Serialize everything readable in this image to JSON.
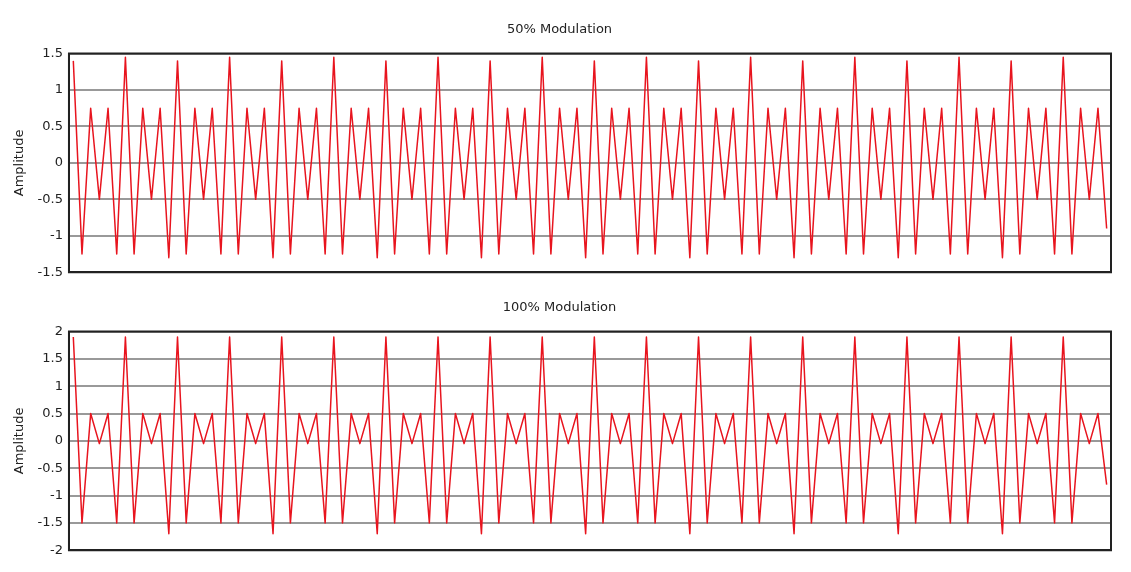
{
  "chart_data": [
    {
      "type": "line",
      "title": "50% Modulation",
      "ylabel": "Amplitude",
      "color": "#e8141e",
      "marker": "none",
      "grid": "y",
      "tick_labels": "y",
      "ylim": [
        -1.5,
        1.5
      ],
      "yticks": [
        -1.5,
        -1,
        -0.5,
        0,
        0.5,
        1,
        1.5
      ],
      "categories": [
        null,
        null,
        null,
        null,
        null,
        null,
        null,
        null,
        null,
        null,
        null,
        null,
        null,
        null,
        null,
        null,
        null,
        null,
        null,
        null,
        null,
        null,
        null,
        null,
        null,
        null,
        null,
        null,
        null,
        null,
        null,
        null,
        null,
        null,
        null,
        null,
        null,
        null,
        null,
        null,
        null,
        null,
        null,
        null,
        null,
        null,
        null,
        null,
        null,
        null,
        null,
        null,
        null,
        null,
        null,
        null,
        null,
        null,
        null,
        null,
        null,
        null,
        null,
        null,
        null,
        null,
        null,
        null,
        null,
        null,
        null,
        null,
        null,
        null,
        null,
        null,
        null,
        null,
        null,
        null,
        null,
        null,
        null,
        null,
        null,
        null,
        null,
        null,
        null,
        null,
        null,
        null,
        null,
        null,
        null,
        null,
        null,
        null,
        null,
        null,
        null,
        null,
        null,
        null,
        null,
        null,
        null,
        null,
        null,
        null,
        null,
        null,
        null,
        null,
        null,
        null,
        null,
        null,
        null,
        null
      ],
      "values": [
        1.4,
        -1.25,
        0.75,
        -0.5,
        0.75,
        -1.25,
        1.45,
        -1.25,
        0.75,
        -0.5,
        0.75,
        -1.3,
        1.4,
        -1.25,
        0.75,
        -0.5,
        0.75,
        -1.25,
        1.45,
        -1.25,
        0.75,
        -0.5,
        0.75,
        -1.3,
        1.4,
        -1.25,
        0.75,
        -0.5,
        0.75,
        -1.25,
        1.45,
        -1.25,
        0.75,
        -0.5,
        0.75,
        -1.3,
        1.4,
        -1.25,
        0.75,
        -0.5,
        0.75,
        -1.25,
        1.45,
        -1.25,
        0.75,
        -0.5,
        0.75,
        -1.3,
        1.4,
        -1.25,
        0.75,
        -0.5,
        0.75,
        -1.25,
        1.45,
        -1.25,
        0.75,
        -0.5,
        0.75,
        -1.3,
        1.4,
        -1.25,
        0.75,
        -0.5,
        0.75,
        -1.25,
        1.45,
        -1.25,
        0.75,
        -0.5,
        0.75,
        -1.3,
        1.4,
        -1.25,
        0.75,
        -0.5,
        0.75,
        -1.25,
        1.45,
        -1.25,
        0.75,
        -0.5,
        0.75,
        -1.3,
        1.4,
        -1.25,
        0.75,
        -0.5,
        0.75,
        -1.25,
        1.45,
        -1.25,
        0.75,
        -0.5,
        0.75,
        -1.3,
        1.4,
        -1.25,
        0.75,
        -0.5,
        0.75,
        -1.25,
        1.45,
        -1.25,
        0.75,
        -0.5,
        0.75,
        -1.3,
        1.4,
        -1.25,
        0.75,
        -0.5,
        0.75,
        -1.25,
        1.45,
        -1.25,
        0.75,
        -0.5,
        0.75,
        -0.9
      ]
    },
    {
      "type": "line",
      "title": "100% Modulation",
      "ylabel": "Amplitude",
      "color": "#e8141e",
      "marker": "none",
      "grid": "y",
      "tick_labels": "y",
      "ylim": [
        -2,
        2
      ],
      "yticks": [
        -2,
        -1.5,
        -1,
        -0.5,
        0,
        0.5,
        1,
        1.5,
        2
      ],
      "categories": [
        null,
        null,
        null,
        null,
        null,
        null,
        null,
        null,
        null,
        null,
        null,
        null,
        null,
        null,
        null,
        null,
        null,
        null,
        null,
        null,
        null,
        null,
        null,
        null,
        null,
        null,
        null,
        null,
        null,
        null,
        null,
        null,
        null,
        null,
        null,
        null,
        null,
        null,
        null,
        null,
        null,
        null,
        null,
        null,
        null,
        null,
        null,
        null,
        null,
        null,
        null,
        null,
        null,
        null,
        null,
        null,
        null,
        null,
        null,
        null,
        null,
        null,
        null,
        null,
        null,
        null,
        null,
        null,
        null,
        null,
        null,
        null,
        null,
        null,
        null,
        null,
        null,
        null,
        null,
        null,
        null,
        null,
        null,
        null,
        null,
        null,
        null,
        null,
        null,
        null,
        null,
        null,
        null,
        null,
        null,
        null,
        null,
        null,
        null,
        null,
        null,
        null,
        null,
        null,
        null,
        null,
        null,
        null,
        null,
        null,
        null,
        null,
        null,
        null,
        null,
        null,
        null,
        null,
        null,
        null
      ],
      "values": [
        1.9,
        -1.5,
        0.5,
        -0.05,
        0.5,
        -1.5,
        1.9,
        -1.5,
        0.5,
        -0.05,
        0.5,
        -1.7,
        1.9,
        -1.5,
        0.5,
        -0.05,
        0.5,
        -1.5,
        1.9,
        -1.5,
        0.5,
        -0.05,
        0.5,
        -1.7,
        1.9,
        -1.5,
        0.5,
        -0.05,
        0.5,
        -1.5,
        1.9,
        -1.5,
        0.5,
        -0.05,
        0.5,
        -1.7,
        1.9,
        -1.5,
        0.5,
        -0.05,
        0.5,
        -1.5,
        1.9,
        -1.5,
        0.5,
        -0.05,
        0.5,
        -1.7,
        1.9,
        -1.5,
        0.5,
        -0.05,
        0.5,
        -1.5,
        1.9,
        -1.5,
        0.5,
        -0.05,
        0.5,
        -1.7,
        1.9,
        -1.5,
        0.5,
        -0.05,
        0.5,
        -1.5,
        1.9,
        -1.5,
        0.5,
        -0.05,
        0.5,
        -1.7,
        1.9,
        -1.5,
        0.5,
        -0.05,
        0.5,
        -1.5,
        1.9,
        -1.5,
        0.5,
        -0.05,
        0.5,
        -1.7,
        1.9,
        -1.5,
        0.5,
        -0.05,
        0.5,
        -1.5,
        1.9,
        -1.5,
        0.5,
        -0.05,
        0.5,
        -1.7,
        1.9,
        -1.5,
        0.5,
        -0.05,
        0.5,
        -1.5,
        1.9,
        -1.5,
        0.5,
        -0.05,
        0.5,
        -1.7,
        1.9,
        -1.5,
        0.5,
        -0.05,
        0.5,
        -1.5,
        1.9,
        -1.5,
        0.5,
        -0.05,
        0.5,
        -0.8
      ]
    }
  ]
}
